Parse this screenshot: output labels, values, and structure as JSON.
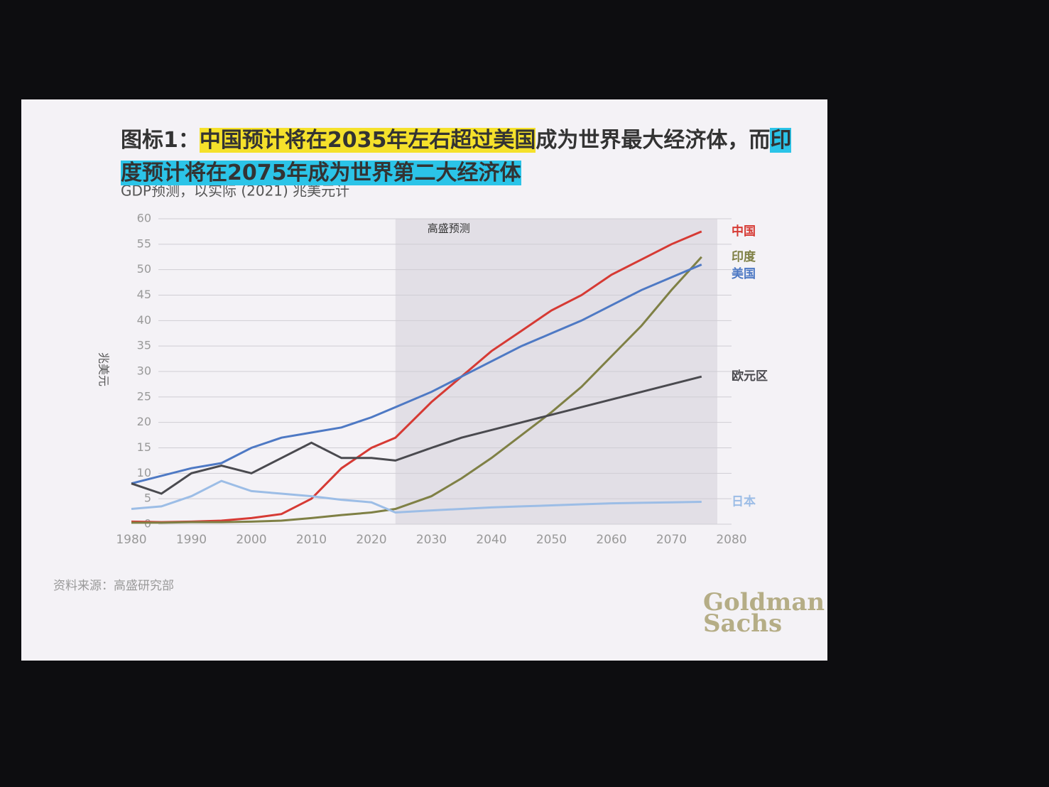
{
  "chart_data": {
    "type": "line",
    "title": [
      "图标1：",
      "中国预计将在2035年左右超过美国",
      "成为世界最大经济体，而",
      "印度预计将在2075年成为世界第二大经济体"
    ],
    "subtitle": "GDP预测，以实际 (2021) 兆美元计",
    "ylabel": "兆美元",
    "annotation": "高盛预测",
    "source": "资料来源：高盛研究部",
    "logo": [
      "Goldman",
      "Sachs"
    ],
    "x": [
      1980,
      1985,
      1990,
      1995,
      2000,
      2005,
      2010,
      2015,
      2020,
      2024,
      2030,
      2035,
      2040,
      2045,
      2050,
      2055,
      2060,
      2065,
      2070,
      2075
    ],
    "series": [
      {
        "name": "中国",
        "color": "#d63a34",
        "values": [
          0.5,
          0.4,
          0.5,
          0.7,
          1.2,
          2,
          5,
          11,
          15,
          17,
          24,
          29,
          34,
          38,
          42,
          45,
          49,
          52,
          55,
          57.5
        ]
      },
      {
        "name": "印度",
        "color": "#7f8045",
        "values": [
          0.3,
          0.3,
          0.4,
          0.4,
          0.5,
          0.7,
          1.2,
          1.8,
          2.3,
          3,
          5.5,
          9,
          13,
          17.5,
          22,
          27,
          33,
          39,
          46,
          52.5
        ]
      },
      {
        "name": "美国",
        "color": "#4e79c4",
        "values": [
          8,
          9.5,
          11,
          12,
          15,
          17,
          18,
          19,
          21,
          23,
          26,
          29,
          32,
          35,
          37.5,
          40,
          43,
          46,
          48.5,
          51
        ]
      },
      {
        "name": "欧元区",
        "color": "#4a4a4f",
        "values": [
          8,
          6,
          10,
          11.5,
          10,
          13,
          16,
          13,
          13,
          12.5,
          15,
          17,
          18.5,
          20,
          21.5,
          23,
          24.5,
          26,
          27.5,
          29
        ]
      },
      {
        "name": "日本",
        "color": "#9cbde6",
        "values": [
          3,
          3.5,
          5.5,
          8.5,
          6.5,
          6,
          5.5,
          4.8,
          4.3,
          2.3,
          2.7,
          3,
          3.3,
          3.5,
          3.7,
          3.9,
          4.1,
          4.2,
          4.3,
          4.4
        ]
      }
    ],
    "xlim": [
      1980,
      2080
    ],
    "xticks": [
      1980,
      1990,
      2000,
      2010,
      2020,
      2030,
      2040,
      2050,
      2060,
      2070,
      2080
    ],
    "ylim": [
      0,
      60
    ],
    "yticks": [
      0,
      5,
      10,
      15,
      20,
      25,
      30,
      35,
      40,
      45,
      50,
      55,
      60
    ],
    "grid": true
  }
}
